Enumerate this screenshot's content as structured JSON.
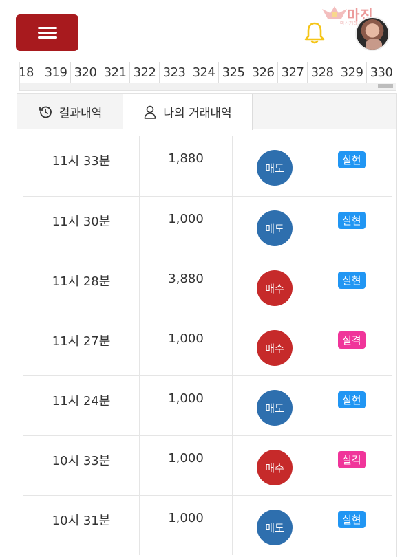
{
  "header": {
    "menu_button": "menu",
    "watermark_text": "마진",
    "watermark_sub": "마진거래 커뮤니티",
    "icons": {
      "menu": "hamburger-icon",
      "notifications": "bell-icon",
      "profile": "avatar"
    },
    "accent_color": "#a81a1e",
    "bell_color": "#f5c518"
  },
  "round_strip": {
    "numbers": [
      "18",
      "319",
      "320",
      "321",
      "322",
      "323",
      "324",
      "325",
      "326",
      "327",
      "328",
      "329",
      "330"
    ]
  },
  "tabs": [
    {
      "label": "결과내역",
      "icon": "history-icon",
      "active": false
    },
    {
      "label": "나의 거래내역",
      "icon": "user-icon",
      "active": true
    }
  ],
  "trades": [
    {
      "time": "11시 33분",
      "amount": "1,880",
      "type": "매도",
      "type_kind": "sell",
      "result": "실현",
      "result_kind": "win"
    },
    {
      "time": "11시 30분",
      "amount": "1,000",
      "type": "매도",
      "type_kind": "sell",
      "result": "실현",
      "result_kind": "win"
    },
    {
      "time": "11시 28분",
      "amount": "3,880",
      "type": "매수",
      "type_kind": "buy",
      "result": "실현",
      "result_kind": "win"
    },
    {
      "time": "11시 27분",
      "amount": "1,000",
      "type": "매수",
      "type_kind": "buy",
      "result": "실격",
      "result_kind": "lose"
    },
    {
      "time": "11시 24분",
      "amount": "1,000",
      "type": "매도",
      "type_kind": "sell",
      "result": "실현",
      "result_kind": "win"
    },
    {
      "time": "10시 33분",
      "amount": "1,000",
      "type": "매수",
      "type_kind": "buy",
      "result": "실격",
      "result_kind": "lose"
    },
    {
      "time": "10시 31분",
      "amount": "1,000",
      "type": "매도",
      "type_kind": "sell",
      "result": "실현",
      "result_kind": "win"
    }
  ],
  "colors": {
    "sell": "#2e6fae",
    "buy": "#c62a2a",
    "win_badge": "#2196f3",
    "lose_badge": "#f0359a"
  }
}
